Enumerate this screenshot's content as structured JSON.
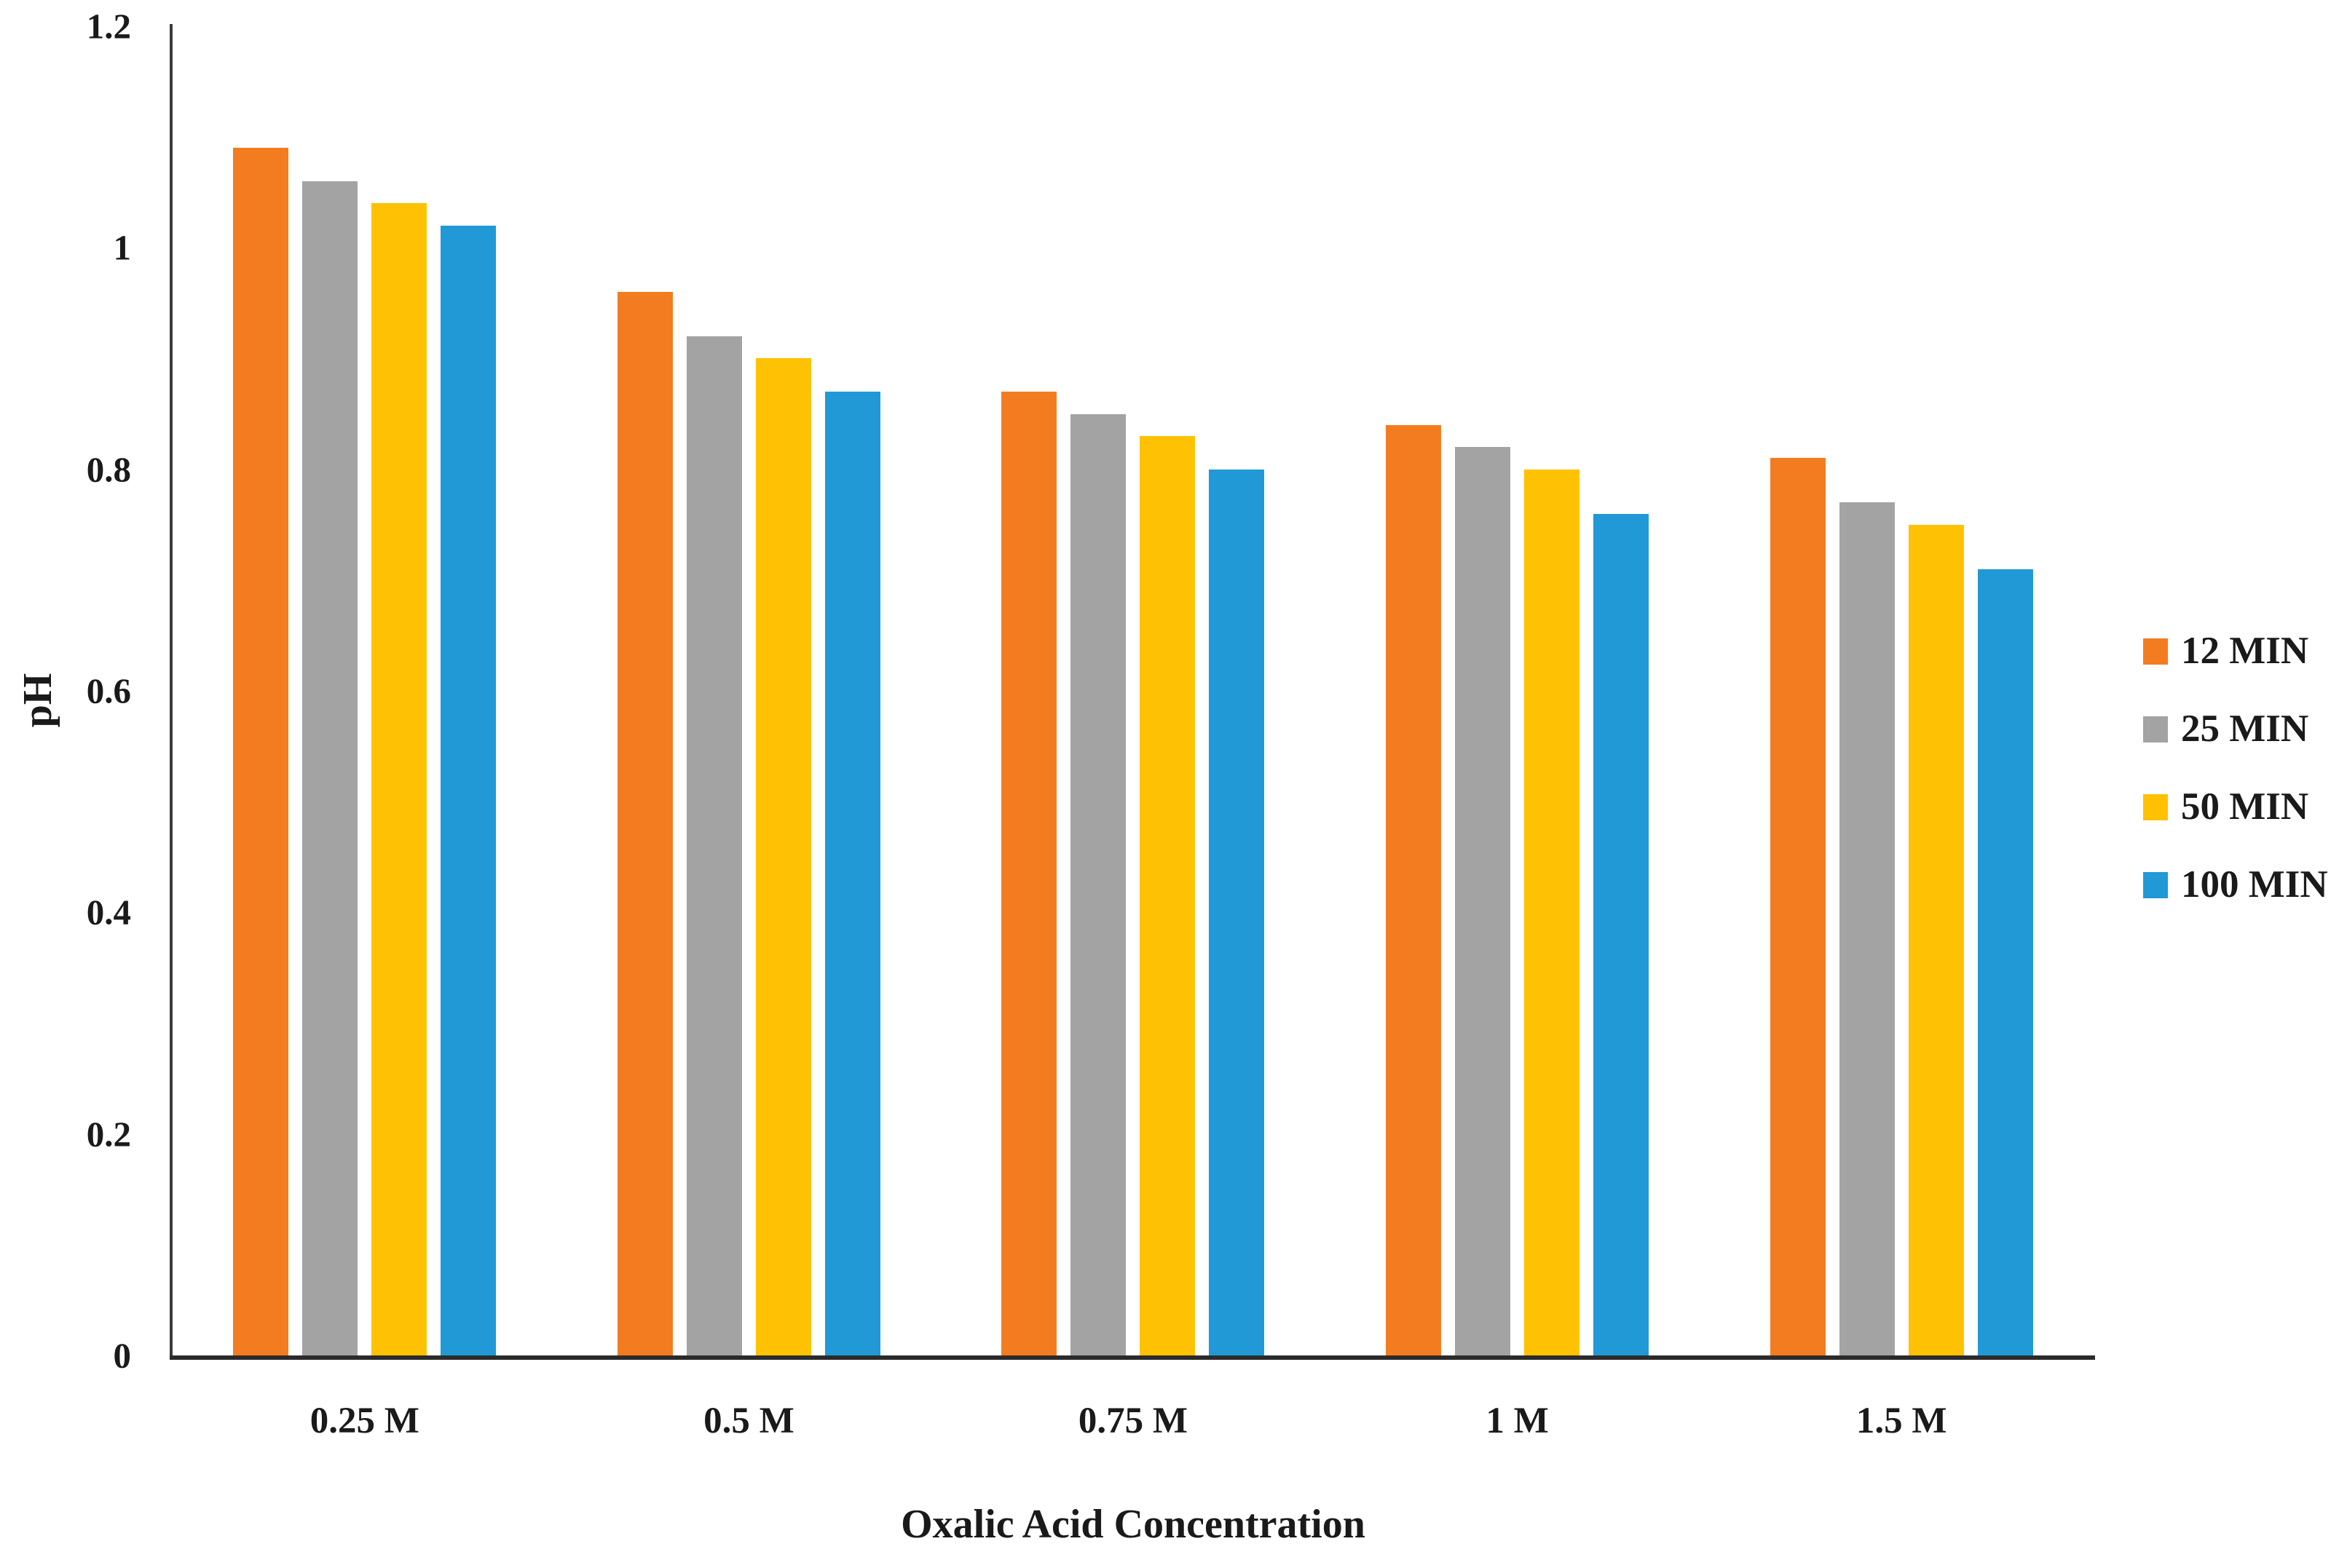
{
  "figure": {
    "background_color": "#FFFFFF",
    "text_color": "#1A1A1A",
    "axis_line_color": "#333333"
  },
  "chart_data": {
    "type": "bar",
    "title": "",
    "xlabel": "Oxalic Acid Concentration",
    "ylabel": "pH",
    "categories": [
      "0.25 M",
      "0.5 M",
      "0.75 M",
      "1 M",
      "1.5 M"
    ],
    "series": [
      {
        "name": "12 MIN",
        "color": "#F47C20",
        "values": [
          1.09,
          0.96,
          0.87,
          0.84,
          0.81
        ]
      },
      {
        "name": "25 MIN",
        "color": "#A3A3A3",
        "values": [
          1.06,
          0.92,
          0.85,
          0.82,
          0.77
        ]
      },
      {
        "name": "50 MIN",
        "color": "#FFC103",
        "values": [
          1.04,
          0.9,
          0.83,
          0.8,
          0.75
        ]
      },
      {
        "name": "100 MIN",
        "color": "#2199D6",
        "values": [
          1.02,
          0.87,
          0.8,
          0.76,
          0.71
        ]
      }
    ],
    "ylim": [
      0,
      1.2
    ],
    "yticks": [
      "1.2",
      "1",
      "0.8",
      "0.6",
      "0.4",
      "0.2",
      "0"
    ],
    "ytick_values": [
      1.2,
      1,
      0.8,
      0.6,
      0.4,
      0.2,
      0
    ],
    "grid": false,
    "legend_position": "right"
  }
}
